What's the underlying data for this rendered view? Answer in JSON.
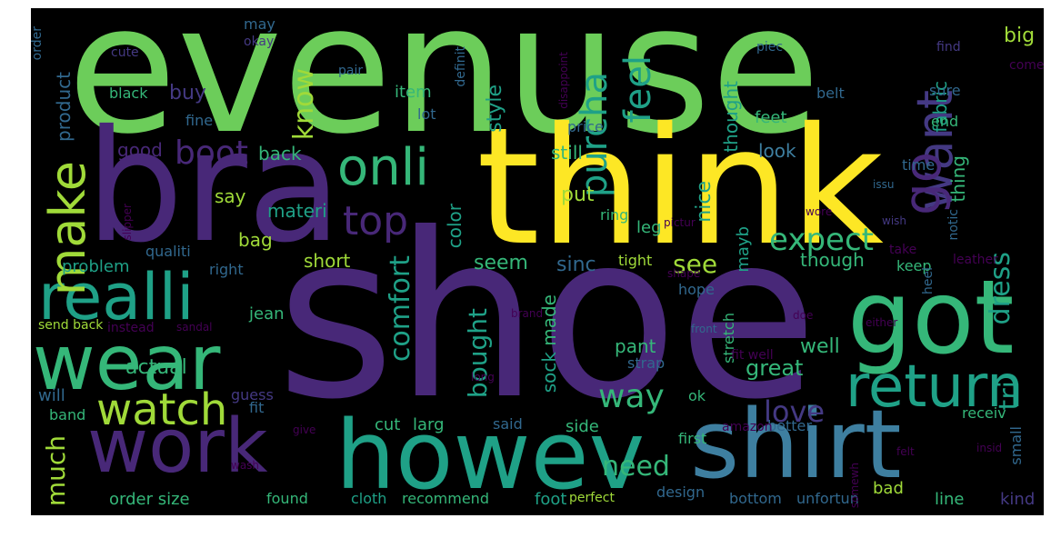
{
  "palette": {
    "background": "#000000",
    "yellow": "#fde725",
    "lime": "#a0da39",
    "green": "#6ccd5a",
    "emerald": "#35b779",
    "teal": "#1fa187",
    "cyan": "#22a884",
    "blue": "#31688e",
    "steel": "#3e7fa0",
    "indigo": "#443983",
    "purple": "#482878",
    "violet": "#440154"
  },
  "words": [
    {
      "text": "evenuse",
      "color": "green"
    },
    {
      "text": "shoe",
      "color": "purple"
    },
    {
      "text": "think",
      "color": "yellow"
    },
    {
      "text": "bra",
      "color": "purple"
    },
    {
      "text": "howev",
      "color": "teal"
    },
    {
      "text": "shirt",
      "color": "steel"
    },
    {
      "text": "got",
      "color": "emerald"
    },
    {
      "text": "work",
      "color": "purple"
    },
    {
      "text": "wear",
      "color": "emerald"
    },
    {
      "text": "realli",
      "color": "teal"
    },
    {
      "text": "return",
      "color": "teal"
    },
    {
      "text": "watch",
      "color": "lime"
    },
    {
      "text": "onli",
      "color": "emerald"
    },
    {
      "text": "make",
      "color": "lime"
    },
    {
      "text": "top",
      "color": "purple"
    },
    {
      "text": "want",
      "color": "indigo"
    },
    {
      "text": "go",
      "color": "purple"
    },
    {
      "text": "feel",
      "color": "teal"
    },
    {
      "text": "purcha",
      "color": "teal"
    },
    {
      "text": "boot",
      "color": "purple"
    },
    {
      "text": "comfort",
      "color": "teal"
    },
    {
      "text": "expect",
      "color": "emerald"
    },
    {
      "text": "love",
      "color": "indigo"
    },
    {
      "text": "way",
      "color": "emerald"
    },
    {
      "text": "dress",
      "color": "teal"
    },
    {
      "text": "tri",
      "color": "teal"
    },
    {
      "text": "need",
      "color": "emerald"
    },
    {
      "text": "much",
      "color": "lime"
    },
    {
      "text": "bought",
      "color": "teal"
    },
    {
      "text": "know",
      "color": "lime"
    },
    {
      "text": "see",
      "color": "lime"
    },
    {
      "text": "buy",
      "color": "indigo"
    },
    {
      "text": "good",
      "color": "purple"
    },
    {
      "text": "style",
      "color": "teal"
    },
    {
      "text": "thought",
      "color": "teal"
    },
    {
      "text": "big",
      "color": "lime"
    },
    {
      "text": "fabric",
      "color": "teal"
    },
    {
      "text": "product",
      "color": "blue"
    },
    {
      "text": "black",
      "color": "emerald"
    },
    {
      "text": "feet",
      "color": "emerald"
    },
    {
      "text": "item",
      "color": "emerald"
    },
    {
      "text": "lot",
      "color": "blue"
    },
    {
      "text": "look",
      "color": "steel"
    },
    {
      "text": "still",
      "color": "emerald"
    },
    {
      "text": "back",
      "color": "emerald"
    },
    {
      "text": "end",
      "color": "emerald"
    },
    {
      "text": "sure",
      "color": "blue"
    },
    {
      "text": "price",
      "color": "blue"
    },
    {
      "text": "thing",
      "color": "emerald"
    },
    {
      "text": "say",
      "color": "lime"
    },
    {
      "text": "materi",
      "color": "teal"
    },
    {
      "text": "put",
      "color": "lime"
    },
    {
      "text": "nice",
      "color": "teal"
    },
    {
      "text": "time",
      "color": "blue"
    },
    {
      "text": "bag",
      "color": "lime"
    },
    {
      "text": "color",
      "color": "teal"
    },
    {
      "text": "ring",
      "color": "emerald"
    },
    {
      "text": "leg",
      "color": "emerald"
    },
    {
      "text": "seem",
      "color": "emerald"
    },
    {
      "text": "sinc",
      "color": "blue"
    },
    {
      "text": "mayb",
      "color": "teal"
    },
    {
      "text": "though",
      "color": "emerald"
    },
    {
      "text": "keep",
      "color": "emerald"
    },
    {
      "text": "short",
      "color": "lime"
    },
    {
      "text": "made",
      "color": "emerald"
    },
    {
      "text": "problem",
      "color": "teal"
    },
    {
      "text": "right",
      "color": "blue"
    },
    {
      "text": "qualiti",
      "color": "blue"
    },
    {
      "text": "heel",
      "color": "blue"
    },
    {
      "text": "hope",
      "color": "blue"
    },
    {
      "text": "tight",
      "color": "lime"
    },
    {
      "text": "jean",
      "color": "emerald"
    },
    {
      "text": "pant",
      "color": "emerald"
    },
    {
      "text": "well",
      "color": "emerald"
    },
    {
      "text": "great",
      "color": "emerald"
    },
    {
      "text": "actual",
      "color": "emerald"
    },
    {
      "text": "sock",
      "color": "teal"
    },
    {
      "text": "stretch",
      "color": "emerald"
    },
    {
      "text": "strap",
      "color": "blue"
    },
    {
      "text": "ok",
      "color": "emerald"
    },
    {
      "text": "fit",
      "color": "blue"
    },
    {
      "text": "guess",
      "color": "indigo"
    },
    {
      "text": "will",
      "color": "blue"
    },
    {
      "text": "band",
      "color": "emerald"
    },
    {
      "text": "cut",
      "color": "emerald"
    },
    {
      "text": "larg",
      "color": "emerald"
    },
    {
      "text": "said",
      "color": "blue"
    },
    {
      "text": "side",
      "color": "emerald"
    },
    {
      "text": "better",
      "color": "blue"
    },
    {
      "text": "receiv",
      "color": "emerald"
    },
    {
      "text": "small",
      "color": "blue"
    },
    {
      "text": "first",
      "color": "emerald"
    },
    {
      "text": "order size",
      "color": "emerald"
    },
    {
      "text": "found",
      "color": "emerald"
    },
    {
      "text": "cloth",
      "color": "teal"
    },
    {
      "text": "recommend",
      "color": "emerald"
    },
    {
      "text": "foot",
      "color": "teal"
    },
    {
      "text": "perfect",
      "color": "lime"
    },
    {
      "text": "design",
      "color": "blue"
    },
    {
      "text": "bottom",
      "color": "blue"
    },
    {
      "text": "unfortun",
      "color": "blue"
    },
    {
      "text": "bad",
      "color": "lime"
    },
    {
      "text": "line",
      "color": "emerald"
    },
    {
      "text": "kind",
      "color": "indigo"
    },
    {
      "text": "fine",
      "color": "blue"
    },
    {
      "text": "may",
      "color": "blue"
    },
    {
      "text": "belt",
      "color": "blue"
    },
    {
      "text": "cute",
      "color": "indigo"
    },
    {
      "text": "pair",
      "color": "blue"
    },
    {
      "text": "order",
      "color": "blue"
    },
    {
      "text": "definit",
      "color": "blue"
    },
    {
      "text": "disappoint",
      "color": "violet"
    },
    {
      "text": "piec",
      "color": "blue"
    },
    {
      "text": "find",
      "color": "indigo"
    },
    {
      "text": "come",
      "color": "violet"
    },
    {
      "text": "issu",
      "color": "blue"
    },
    {
      "text": "notic",
      "color": "blue"
    },
    {
      "text": "wish",
      "color": "indigo"
    },
    {
      "text": "send back",
      "color": "lime"
    },
    {
      "text": "instead",
      "color": "violet"
    },
    {
      "text": "sandal",
      "color": "violet"
    },
    {
      "text": "front",
      "color": "blue"
    },
    {
      "text": "either",
      "color": "violet"
    },
    {
      "text": "doe",
      "color": "violet"
    },
    {
      "text": "take",
      "color": "violet"
    },
    {
      "text": "leather",
      "color": "violet"
    },
    {
      "text": "brand",
      "color": "violet"
    },
    {
      "text": "shape",
      "color": "violet"
    },
    {
      "text": "long",
      "color": "violet"
    },
    {
      "text": "give",
      "color": "violet"
    },
    {
      "text": "amazon",
      "color": "violet"
    },
    {
      "text": "felt",
      "color": "violet"
    },
    {
      "text": "insid",
      "color": "violet"
    },
    {
      "text": "wash",
      "color": "violet"
    },
    {
      "text": "somewh",
      "color": "violet"
    },
    {
      "text": "fit well",
      "color": "violet"
    },
    {
      "text": "pictur",
      "color": "violet"
    },
    {
      "text": "slipper",
      "color": "violet"
    },
    {
      "text": "wore",
      "color": "violet"
    },
    {
      "text": "okay",
      "color": "indigo"
    }
  ]
}
